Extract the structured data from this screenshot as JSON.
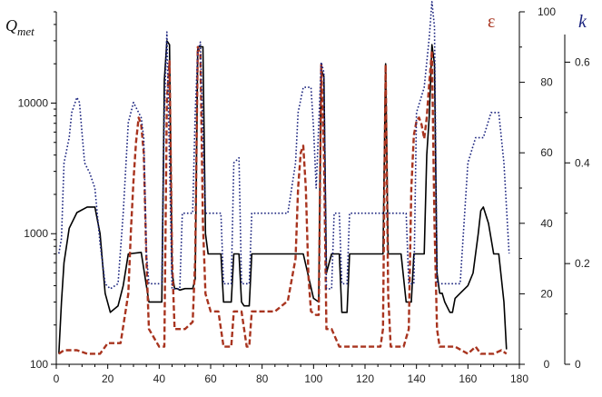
{
  "chart_data": {
    "type": "line",
    "title": "",
    "xlabel": "",
    "xlim": [
      0,
      180
    ],
    "xticks": [
      0,
      20,
      40,
      60,
      80,
      100,
      120,
      140,
      160,
      180
    ],
    "axes": {
      "left": {
        "label_main": "Q",
        "label_sub": "met",
        "scale": "log",
        "range": [
          100,
          50000
        ],
        "ticks": [
          {
            "value": 100,
            "label": "100"
          },
          {
            "value": 1000,
            "label": "1000"
          },
          {
            "value": 10000,
            "label": "10000"
          }
        ]
      },
      "eps": {
        "label": "ε",
        "color": "#a8341f",
        "scale": "linear",
        "range": [
          0,
          100
        ],
        "ticks": [
          0,
          20,
          40,
          60,
          80,
          100
        ]
      },
      "k": {
        "label": "k",
        "color": "#1a237e",
        "scale": "linear",
        "range": [
          0,
          0.7
        ],
        "ticks": [
          0,
          0.2,
          0.4,
          0.6
        ]
      }
    },
    "series": [
      {
        "axis": "left",
        "color": "#000000",
        "style": "solid",
        "points": [
          [
            1,
            120
          ],
          [
            2,
            300
          ],
          [
            3,
            600
          ],
          [
            5,
            1100
          ],
          [
            8,
            1450
          ],
          [
            12,
            1600
          ],
          [
            15,
            1600
          ],
          [
            17,
            1000
          ],
          [
            19,
            350
          ],
          [
            21,
            250
          ],
          [
            24,
            280
          ],
          [
            26,
            400
          ],
          [
            28,
            700
          ],
          [
            33,
            720
          ],
          [
            35,
            400
          ],
          [
            36,
            300
          ],
          [
            41,
            300
          ],
          [
            42,
            15000
          ],
          [
            43,
            30000
          ],
          [
            44,
            28000
          ],
          [
            45,
            500
          ],
          [
            46,
            380
          ],
          [
            47,
            380
          ],
          [
            48,
            370
          ],
          [
            50,
            380
          ],
          [
            53,
            380
          ],
          [
            54,
            450
          ],
          [
            55,
            27000
          ],
          [
            57,
            27000
          ],
          [
            58,
            1000
          ],
          [
            59,
            700
          ],
          [
            64,
            700
          ],
          [
            65,
            300
          ],
          [
            68,
            300
          ],
          [
            69,
            700
          ],
          [
            71,
            700
          ],
          [
            72,
            300
          ],
          [
            73,
            280
          ],
          [
            75,
            280
          ],
          [
            76,
            700
          ],
          [
            86,
            700
          ],
          [
            90,
            700
          ],
          [
            96,
            700
          ],
          [
            100,
            320
          ],
          [
            102,
            300
          ],
          [
            103,
            18000
          ],
          [
            104,
            16000
          ],
          [
            105,
            500
          ],
          [
            107,
            700
          ],
          [
            110,
            700
          ],
          [
            111,
            250
          ],
          [
            113,
            250
          ],
          [
            114,
            700
          ],
          [
            120,
            700
          ],
          [
            127,
            700
          ],
          [
            128,
            20000
          ],
          [
            129,
            700
          ],
          [
            134,
            700
          ],
          [
            136,
            300
          ],
          [
            138,
            300
          ],
          [
            139,
            700
          ],
          [
            143,
            700
          ],
          [
            144,
            4000
          ],
          [
            145,
            8000
          ],
          [
            146,
            28000
          ],
          [
            147,
            20000
          ],
          [
            148,
            500
          ],
          [
            149,
            350
          ],
          [
            150,
            350
          ],
          [
            151,
            300
          ],
          [
            153,
            250
          ],
          [
            154,
            250
          ],
          [
            155,
            320
          ],
          [
            157,
            350
          ],
          [
            160,
            400
          ],
          [
            162,
            500
          ],
          [
            164,
            1000
          ],
          [
            165,
            1500
          ],
          [
            166,
            1600
          ],
          [
            168,
            1200
          ],
          [
            170,
            700
          ],
          [
            172,
            700
          ],
          [
            174,
            300
          ],
          [
            175,
            130
          ]
        ]
      },
      {
        "axis": "eps",
        "color": "#a8341f",
        "style": "dashed",
        "points": [
          [
            1,
            3
          ],
          [
            3,
            4
          ],
          [
            8,
            4
          ],
          [
            12,
            3
          ],
          [
            17,
            3
          ],
          [
            20,
            6
          ],
          [
            25,
            6
          ],
          [
            28,
            20
          ],
          [
            29,
            38
          ],
          [
            30,
            52
          ],
          [
            31,
            63
          ],
          [
            32,
            70
          ],
          [
            33,
            68
          ],
          [
            34,
            60
          ],
          [
            35,
            30
          ],
          [
            36,
            10
          ],
          [
            40,
            5
          ],
          [
            42,
            5
          ],
          [
            43,
            75
          ],
          [
            44,
            86
          ],
          [
            45,
            30
          ],
          [
            46,
            10
          ],
          [
            48,
            10
          ],
          [
            50,
            10
          ],
          [
            53,
            12
          ],
          [
            54,
            30
          ],
          [
            55,
            90
          ],
          [
            56,
            88
          ],
          [
            57,
            40
          ],
          [
            58,
            20
          ],
          [
            60,
            15
          ],
          [
            63,
            15
          ],
          [
            65,
            5
          ],
          [
            68,
            5
          ],
          [
            69,
            15
          ],
          [
            72,
            15
          ],
          [
            74,
            5
          ],
          [
            75,
            5
          ],
          [
            76,
            15
          ],
          [
            80,
            15
          ],
          [
            85,
            15
          ],
          [
            90,
            18
          ],
          [
            93,
            30
          ],
          [
            94,
            50
          ],
          [
            95,
            60
          ],
          [
            96,
            62
          ],
          [
            97,
            50
          ],
          [
            98,
            25
          ],
          [
            99,
            15
          ],
          [
            101,
            14
          ],
          [
            102,
            14
          ],
          [
            103,
            85
          ],
          [
            104,
            60
          ],
          [
            105,
            10
          ],
          [
            107,
            10
          ],
          [
            110,
            5
          ],
          [
            115,
            5
          ],
          [
            120,
            5
          ],
          [
            126,
            5
          ],
          [
            127,
            10
          ],
          [
            128,
            85
          ],
          [
            129,
            20
          ],
          [
            130,
            5
          ],
          [
            133,
            5
          ],
          [
            135,
            5
          ],
          [
            137,
            10
          ],
          [
            138,
            50
          ],
          [
            139,
            65
          ],
          [
            140,
            69
          ],
          [
            141,
            70
          ],
          [
            142,
            68
          ],
          [
            143,
            64
          ],
          [
            144,
            70
          ],
          [
            145,
            80
          ],
          [
            146,
            89
          ],
          [
            147,
            40
          ],
          [
            148,
            10
          ],
          [
            149,
            5
          ],
          [
            150,
            5
          ],
          [
            155,
            5
          ],
          [
            160,
            3
          ],
          [
            163,
            5
          ],
          [
            165,
            3
          ],
          [
            170,
            3
          ],
          [
            173,
            4
          ],
          [
            175,
            3
          ]
        ]
      },
      {
        "axis": "k",
        "color": "#1a237e",
        "style": "dotted",
        "points": [
          [
            1,
            0.22
          ],
          [
            2,
            0.25
          ],
          [
            3,
            0.4
          ],
          [
            5,
            0.45
          ],
          [
            6,
            0.5
          ],
          [
            8,
            0.53
          ],
          [
            9,
            0.52
          ],
          [
            10,
            0.46
          ],
          [
            11,
            0.4
          ],
          [
            13,
            0.38
          ],
          [
            15,
            0.35
          ],
          [
            17,
            0.24
          ],
          [
            19,
            0.16
          ],
          [
            21,
            0.15
          ],
          [
            24,
            0.16
          ],
          [
            26,
            0.3
          ],
          [
            28,
            0.48
          ],
          [
            30,
            0.52
          ],
          [
            33,
            0.49
          ],
          [
            34,
            0.45
          ],
          [
            35,
            0.22
          ],
          [
            36,
            0.16
          ],
          [
            40,
            0.16
          ],
          [
            41,
            0.16
          ],
          [
            42,
            0.5
          ],
          [
            43,
            0.66
          ],
          [
            44,
            0.4
          ],
          [
            45,
            0.15
          ],
          [
            48,
            0.15
          ],
          [
            49,
            0.3
          ],
          [
            53,
            0.3
          ],
          [
            54,
            0.5
          ],
          [
            55,
            0.62
          ],
          [
            56,
            0.64
          ],
          [
            57,
            0.45
          ],
          [
            58,
            0.3
          ],
          [
            64,
            0.3
          ],
          [
            65,
            0.16
          ],
          [
            68,
            0.16
          ],
          [
            69,
            0.4
          ],
          [
            71,
            0.41
          ],
          [
            72,
            0.16
          ],
          [
            74,
            0.16
          ],
          [
            75,
            0.16
          ],
          [
            76,
            0.3
          ],
          [
            90,
            0.3
          ],
          [
            93,
            0.4
          ],
          [
            94,
            0.5
          ],
          [
            96,
            0.55
          ],
          [
            99,
            0.55
          ],
          [
            100,
            0.47
          ],
          [
            101,
            0.35
          ],
          [
            103,
            0.6
          ],
          [
            104,
            0.58
          ],
          [
            105,
            0.15
          ],
          [
            107,
            0.15
          ],
          [
            108,
            0.3
          ],
          [
            110,
            0.3
          ],
          [
            111,
            0.16
          ],
          [
            113,
            0.16
          ],
          [
            114,
            0.3
          ],
          [
            128,
            0.3
          ],
          [
            129,
            0.3
          ],
          [
            130,
            0.3
          ],
          [
            136,
            0.3
          ],
          [
            137,
            0.16
          ],
          [
            139,
            0.16
          ],
          [
            140,
            0.5
          ],
          [
            143,
            0.55
          ],
          [
            145,
            0.65
          ],
          [
            146,
            0.72
          ],
          [
            147,
            0.67
          ],
          [
            148,
            0.16
          ],
          [
            150,
            0.16
          ],
          [
            153,
            0.16
          ],
          [
            155,
            0.16
          ],
          [
            157,
            0.16
          ],
          [
            160,
            0.4
          ],
          [
            163,
            0.45
          ],
          [
            166,
            0.45
          ],
          [
            169,
            0.5
          ],
          [
            172,
            0.5
          ],
          [
            174,
            0.4
          ],
          [
            176,
            0.22
          ]
        ]
      }
    ]
  }
}
